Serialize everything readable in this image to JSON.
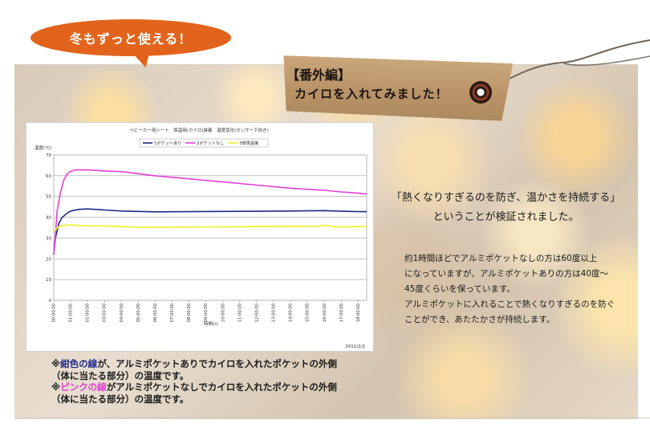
{
  "bubble": {
    "text": "冬もずっと使える！"
  },
  "tag": {
    "line1": "【番外編】",
    "line2": "カイロを入れてみました！"
  },
  "callout": {
    "line1": "「熱くなりすぎるのを防ぎ、温かさを持続する」",
    "line2": "ということが検証されました。"
  },
  "description": {
    "lines": [
      "約1時間ほどでアルミポケットなしの方は60度以上",
      "になっていますが、アルミポケットありの方は40度～",
      "45度くらいを保っています。",
      "アルミポケットに入れることで熱くなりすぎるのを防ぐ",
      "ことができ、あたたかさが持続します。"
    ]
  },
  "notes": {
    "note1": {
      "prefix": "※",
      "highlight": "紺色の線",
      "rest1": "が、アルミポケットありでカイロを入れたポケットの外側",
      "rest2": "（体に当たる部分）の温度です。"
    },
    "note2": {
      "prefix": "※",
      "highlight": "ピンクの線",
      "rest1": "がアルミポケットなしでカイロを入れたポケットの外側",
      "rest2": "（体に当たる部分）の温度です。"
    }
  },
  "colors": {
    "navy": "#1e2a8a",
    "pink": "#e23fd6",
    "yellow": "#f2f23a",
    "bubble": "#e2641c"
  },
  "chart_data": {
    "type": "line",
    "title": "ベビーカー用シート　保温用(カイロ)装着　温度変化(センサー下向き)",
    "ylabel": "温度(℃)",
    "xlabel": "時間(s)",
    "date_note": "2011/2/2",
    "ylim": [
      0,
      70
    ],
    "yticks": [
      0,
      10,
      20,
      30,
      40,
      50,
      60,
      70
    ],
    "xlim": [
      0,
      18.5
    ],
    "xtick_labels": [
      "00:00:00",
      "01:00:00",
      "02:00:00",
      "03:00:00",
      "04:00:00",
      "05:00:00",
      "06:00:00",
      "07:00:00",
      "08:00:00",
      "09:00:00",
      "10:00:00",
      "11:00:00",
      "12:00:00",
      "13:00:00",
      "14:00:00",
      "15:00:00",
      "16:00:00",
      "17:00:00",
      "18:00:00"
    ],
    "grid": true,
    "legend_position": "top",
    "series": [
      {
        "name": "1ポケットあり",
        "color": "#1e2a8a",
        "x": [
          0,
          0.1,
          0.3,
          0.5,
          0.8,
          1.0,
          1.5,
          2.0,
          3.0,
          4.0,
          5.0,
          6.0,
          8.0,
          10.0,
          12.0,
          14.0,
          16.0,
          17.0,
          18.0,
          18.5
        ],
        "y": [
          22,
          30,
          37,
          40,
          42,
          43,
          43.8,
          44,
          43.5,
          43,
          42.8,
          42.6,
          42.7,
          42.8,
          42.9,
          43,
          43.2,
          42.9,
          42.7,
          42.7
        ]
      },
      {
        "name": "2ポケットなし",
        "color": "#e23fd6",
        "x": [
          0,
          0.1,
          0.2,
          0.4,
          0.6,
          0.8,
          1.0,
          1.3,
          2.0,
          3.0,
          4.0,
          5.0,
          6.0,
          8.0,
          10.0,
          12.0,
          14.0,
          15.0,
          16.0,
          17.0,
          18.0,
          18.5
        ],
        "y": [
          22,
          32,
          43,
          52,
          58,
          61,
          62.2,
          62.8,
          62.8,
          62.3,
          62,
          61,
          60,
          58.5,
          57,
          55.5,
          54,
          53.5,
          53,
          52.2,
          51.6,
          51.2
        ]
      },
      {
        "name": "3環境温度",
        "color": "#f2f23a",
        "x": [
          0,
          0.2,
          0.5,
          1.0,
          1.5,
          2.0,
          3.0,
          4.0,
          5.0,
          6.0,
          8.0,
          10.0,
          12.0,
          14.0,
          15.5,
          16.0,
          16.5,
          17.0,
          18.0,
          18.5
        ],
        "y": [
          33,
          35,
          36,
          36.3,
          36,
          35.8,
          35.8,
          35.5,
          35.2,
          35.2,
          35.3,
          35.4,
          35.5,
          35.6,
          35.6,
          36.2,
          35.5,
          35.3,
          35.5,
          35.5
        ]
      }
    ]
  }
}
